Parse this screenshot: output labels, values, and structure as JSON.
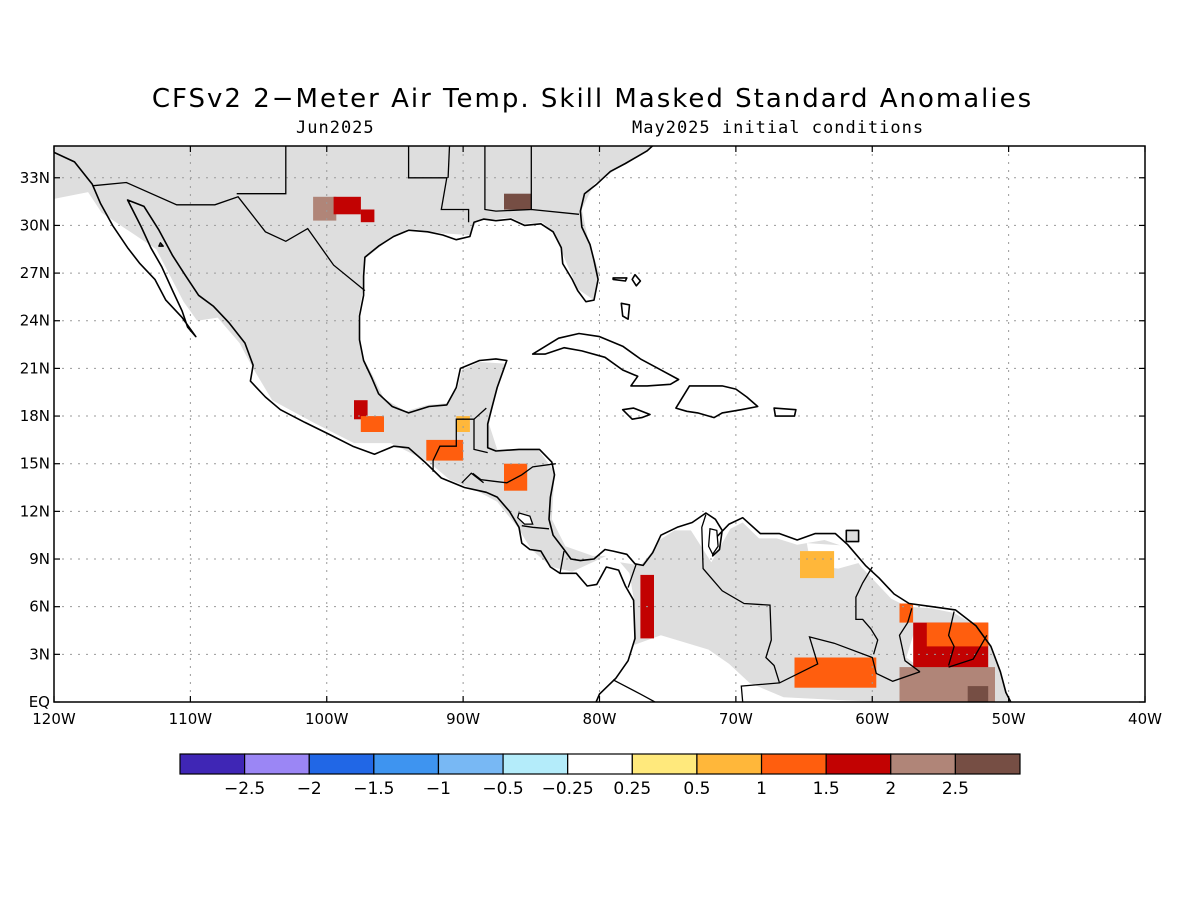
{
  "title": "CFSv2 2−Meter Air Temp. Skill Masked Standard Anomalies",
  "subtitle_left": "Jun2025",
  "subtitle_right": "May2025 initial conditions",
  "map": {
    "lon_range": [
      -120,
      -40
    ],
    "lat_range": [
      0,
      35
    ],
    "lat_ticks": [
      {
        "value": 33,
        "label": "33N"
      },
      {
        "value": 30,
        "label": "30N"
      },
      {
        "value": 27,
        "label": "27N"
      },
      {
        "value": 24,
        "label": "24N"
      },
      {
        "value": 21,
        "label": "21N"
      },
      {
        "value": 18,
        "label": "18N"
      },
      {
        "value": 15,
        "label": "15N"
      },
      {
        "value": 12,
        "label": "12N"
      },
      {
        "value": 9,
        "label": "9N"
      },
      {
        "value": 6,
        "label": "6N"
      },
      {
        "value": 3,
        "label": "3N"
      },
      {
        "value": 0,
        "label": "EQ"
      }
    ],
    "lon_ticks": [
      {
        "value": -120,
        "label": "120W"
      },
      {
        "value": -110,
        "label": "110W"
      },
      {
        "value": -100,
        "label": "100W"
      },
      {
        "value": -90,
        "label": "90W"
      },
      {
        "value": -80,
        "label": "80W"
      },
      {
        "value": -70,
        "label": "70W"
      },
      {
        "value": -60,
        "label": "60W"
      },
      {
        "value": -50,
        "label": "50W"
      },
      {
        "value": -40,
        "label": "40W"
      }
    ],
    "colors": {
      "masked": "#dedede",
      "coast": "#000000",
      "grid": "#9a9a9a"
    }
  },
  "colorbar": {
    "colors": [
      "#3f26b5",
      "#9b86f5",
      "#2167e6",
      "#3e94f0",
      "#78b8f4",
      "#b4ecfa",
      "#ffffff",
      "#ffe97c",
      "#ffb73a",
      "#ff5e0e",
      "#c20202",
      "#b08578",
      "#764e44"
    ],
    "labels": [
      "−2.5",
      "−2",
      "−1.5",
      "−1",
      "−0.5",
      "−0.25",
      "0.25",
      "0.5",
      "1",
      "1.5",
      "2",
      "2.5"
    ]
  },
  "anomaly_patches": [
    {
      "region": "texas",
      "value": 2,
      "lon": [
        -101.0,
        -99.3
      ],
      "lat": [
        30.3,
        31.8
      ]
    },
    {
      "region": "texas",
      "value": 1.5,
      "lon": [
        -99.5,
        -97.5
      ],
      "lat": [
        30.7,
        31.8
      ]
    },
    {
      "region": "texas",
      "value": 1.5,
      "lon": [
        -97.5,
        -96.5
      ],
      "lat": [
        30.2,
        31.0
      ]
    },
    {
      "region": "alabama",
      "value": 2.5,
      "lon": [
        -87.0,
        -85.0
      ],
      "lat": [
        31.0,
        32.0
      ]
    },
    {
      "region": "southern-mexico",
      "value": 1.5,
      "lon": [
        -98.0,
        -97.0
      ],
      "lat": [
        17.8,
        19.0
      ]
    },
    {
      "region": "southern-mexico",
      "value": 1,
      "lon": [
        -97.5,
        -95.8
      ],
      "lat": [
        17.0,
        18.0
      ]
    },
    {
      "region": "guatemala",
      "value": 1,
      "lon": [
        -92.7,
        -90.0
      ],
      "lat": [
        15.2,
        16.5
      ]
    },
    {
      "region": "guatemala",
      "value": 0.5,
      "lon": [
        -90.5,
        -89.5
      ],
      "lat": [
        17.0,
        18.0
      ]
    },
    {
      "region": "honduras",
      "value": 1,
      "lon": [
        -87.0,
        -85.3
      ],
      "lat": [
        13.3,
        15.0
      ]
    },
    {
      "region": "colombia",
      "value": 1.5,
      "lon": [
        -77.0,
        -76.0
      ],
      "lat": [
        4.0,
        8.0
      ]
    },
    {
      "region": "venezuela",
      "value": 0.5,
      "lon": [
        -65.3,
        -62.8
      ],
      "lat": [
        7.8,
        9.5
      ]
    },
    {
      "region": "venezuela-south",
      "value": 1,
      "lon": [
        -65.7,
        -59.7
      ],
      "lat": [
        0.9,
        2.8
      ]
    },
    {
      "region": "guianas",
      "value": 1,
      "lon": [
        -58.0,
        -57.0
      ],
      "lat": [
        5.0,
        6.2
      ]
    },
    {
      "region": "guianas",
      "value": 1.5,
      "lon": [
        -57.0,
        -51.5
      ],
      "lat": [
        2.0,
        5.0
      ]
    },
    {
      "region": "guianas",
      "value": 1,
      "lon": [
        -56.0,
        -51.5
      ],
      "lat": [
        3.5,
        5.0
      ]
    },
    {
      "region": "guianas",
      "value": 2,
      "lon": [
        -58.0,
        -51.0
      ],
      "lat": [
        0.0,
        2.2
      ]
    },
    {
      "region": "guianas",
      "value": 2.5,
      "lon": [
        -53.0,
        -51.5
      ],
      "lat": [
        0.0,
        1.0
      ]
    }
  ]
}
